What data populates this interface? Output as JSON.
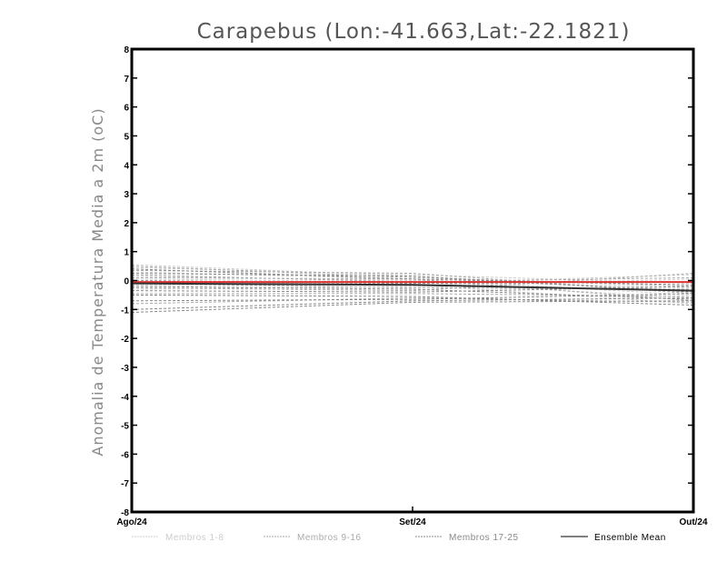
{
  "chart_data": {
    "type": "line",
    "title": "Carapebus (Lon:-41.663,Lat:-22.1821)",
    "ylabel": "Anomalia de Temperatura Media a 2m (oC)",
    "xlabel": "",
    "categories": [
      "Ago/24",
      "Set/24",
      "Out/24"
    ],
    "ylim": [
      -8,
      8
    ],
    "yticks": [
      -8,
      -7,
      -6,
      -5,
      -4,
      -3,
      -2,
      -1,
      0,
      1,
      2,
      3,
      4,
      5,
      6,
      7,
      8
    ],
    "grid": false,
    "legend_position": "bottom",
    "colors": {
      "members_1_8": "#cccccc",
      "members_9_16": "#aaaaaa",
      "members_17_25": "#888888",
      "ensemble_mean": "#000000",
      "ensemble_mean_line": "#333333",
      "red_line": "#e03030"
    },
    "series": [
      {
        "name": "Membros 1-8",
        "values": [
          0.55,
          0.15,
          -0.35
        ],
        "group": "members_1_8"
      },
      {
        "name": "Membros 1-8",
        "values": [
          0.45,
          0.2,
          -0.1
        ],
        "group": "members_1_8"
      },
      {
        "name": "Membros 1-8",
        "values": [
          0.3,
          0.05,
          -0.5
        ],
        "group": "members_1_8"
      },
      {
        "name": "Membros 1-8",
        "values": [
          0.15,
          0.0,
          -0.25
        ],
        "group": "members_1_8"
      },
      {
        "name": "Membros 1-8",
        "values": [
          0.05,
          -0.05,
          -0.6
        ],
        "group": "members_1_8"
      },
      {
        "name": "Membros 1-8",
        "values": [
          -0.05,
          -0.1,
          0.2
        ],
        "group": "members_1_8"
      },
      {
        "name": "Membros 1-8",
        "values": [
          -0.15,
          -0.15,
          -0.8
        ],
        "group": "members_1_8"
      },
      {
        "name": "Membros 1-8",
        "values": [
          -0.3,
          -0.2,
          0.05
        ],
        "group": "members_1_8"
      },
      {
        "name": "Membros 9-16",
        "values": [
          0.5,
          0.1,
          -0.2
        ],
        "group": "members_9_16"
      },
      {
        "name": "Membros 9-16",
        "values": [
          0.35,
          0.25,
          -0.45
        ],
        "group": "members_9_16"
      },
      {
        "name": "Membros 9-16",
        "values": [
          0.2,
          -0.05,
          0.1
        ],
        "group": "members_9_16"
      },
      {
        "name": "Membros 9-16",
        "values": [
          0.1,
          0.05,
          -0.7
        ],
        "group": "members_9_16"
      },
      {
        "name": "Membros 9-16",
        "values": [
          -0.1,
          -0.25,
          -0.3
        ],
        "group": "members_9_16"
      },
      {
        "name": "Membros 9-16",
        "values": [
          -0.25,
          -0.35,
          0.25
        ],
        "group": "members_9_16"
      },
      {
        "name": "Membros 9-16",
        "values": [
          -0.45,
          -0.45,
          -0.55
        ],
        "group": "members_9_16"
      },
      {
        "name": "Membros 9-16",
        "values": [
          -0.8,
          -0.6,
          -0.75
        ],
        "group": "members_9_16"
      },
      {
        "name": "Membros 17-25",
        "values": [
          0.4,
          0.05,
          -0.15
        ],
        "group": "members_17_25"
      },
      {
        "name": "Membros 17-25",
        "values": [
          0.25,
          0.15,
          -0.4
        ],
        "group": "members_17_25"
      },
      {
        "name": "Membros 17-25",
        "values": [
          0.0,
          -0.1,
          -0.05
        ],
        "group": "members_17_25"
      },
      {
        "name": "Membros 17-25",
        "values": [
          -0.2,
          -0.3,
          -0.65
        ],
        "group": "members_17_25"
      },
      {
        "name": "Membros 17-25",
        "values": [
          -0.35,
          -0.4,
          -0.2
        ],
        "group": "members_17_25"
      },
      {
        "name": "Membros 17-25",
        "values": [
          -0.5,
          -0.55,
          -0.85
        ],
        "group": "members_17_25"
      },
      {
        "name": "Membros 17-25",
        "values": [
          -0.7,
          -0.65,
          -0.45
        ],
        "group": "members_17_25"
      },
      {
        "name": "Membros 17-25",
        "values": [
          -1.0,
          -0.7,
          -0.6
        ],
        "group": "members_17_25"
      },
      {
        "name": "Membros 17-25",
        "values": [
          -1.1,
          -0.75,
          -0.7
        ],
        "group": "members_17_25"
      },
      {
        "name": "Ensemble Mean",
        "values": [
          -0.1,
          -0.15,
          -0.35
        ],
        "group": "ensemble_mean"
      },
      {
        "name": "",
        "values": [
          -0.05,
          -0.05,
          -0.05
        ],
        "group": "red_line"
      }
    ],
    "legend": [
      {
        "label": "Membros 1-8",
        "group": "members_1_8"
      },
      {
        "label": "Membros 9-16",
        "group": "members_9_16"
      },
      {
        "label": "Membros 17-25",
        "group": "members_17_25"
      },
      {
        "label": "Ensemble Mean",
        "group": "ensemble_mean"
      }
    ]
  }
}
